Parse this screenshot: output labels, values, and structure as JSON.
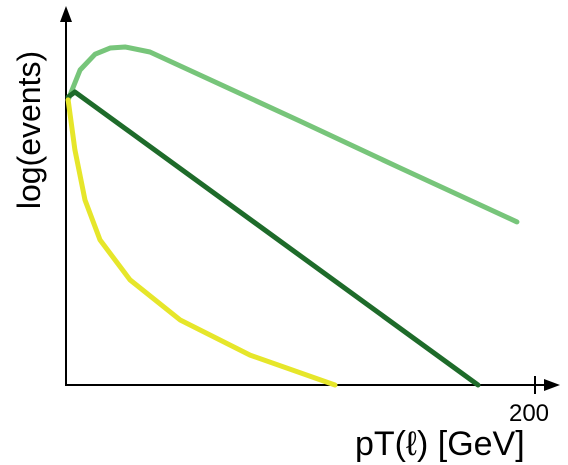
{
  "chart_data": {
    "type": "line",
    "x_label": "pT(ℓ) [GeV]",
    "y_label": "log(events)",
    "xlim": [
      0,
      200
    ],
    "xticks": [
      200
    ],
    "ylim": [
      0,
      100
    ],
    "series": [
      {
        "color": "#77c57a",
        "x": [
          0.9,
          6,
          12.4,
          18.8,
          25.2,
          35.8,
          57.1,
          99.8,
          142.4,
          192.3
        ],
        "values": [
          79.2,
          87.5,
          91.9,
          93.6,
          93.9,
          92.5,
          86.1,
          73.3,
          60.3,
          45.3
        ]
      },
      {
        "color": "#1e6b2a",
        "x": [
          0.9,
          3.8,
          175.7
        ],
        "values": [
          80,
          81.4,
          0
        ]
      },
      {
        "color": "#e6e62a",
        "x": [
          0.9,
          3.8,
          8.1,
          14.5,
          27.3,
          48.6,
          78.5,
          114.7
        ],
        "values": [
          79.2,
          65.3,
          51.4,
          40.3,
          29.2,
          18.1,
          8.3,
          0
        ]
      }
    ]
  }
}
